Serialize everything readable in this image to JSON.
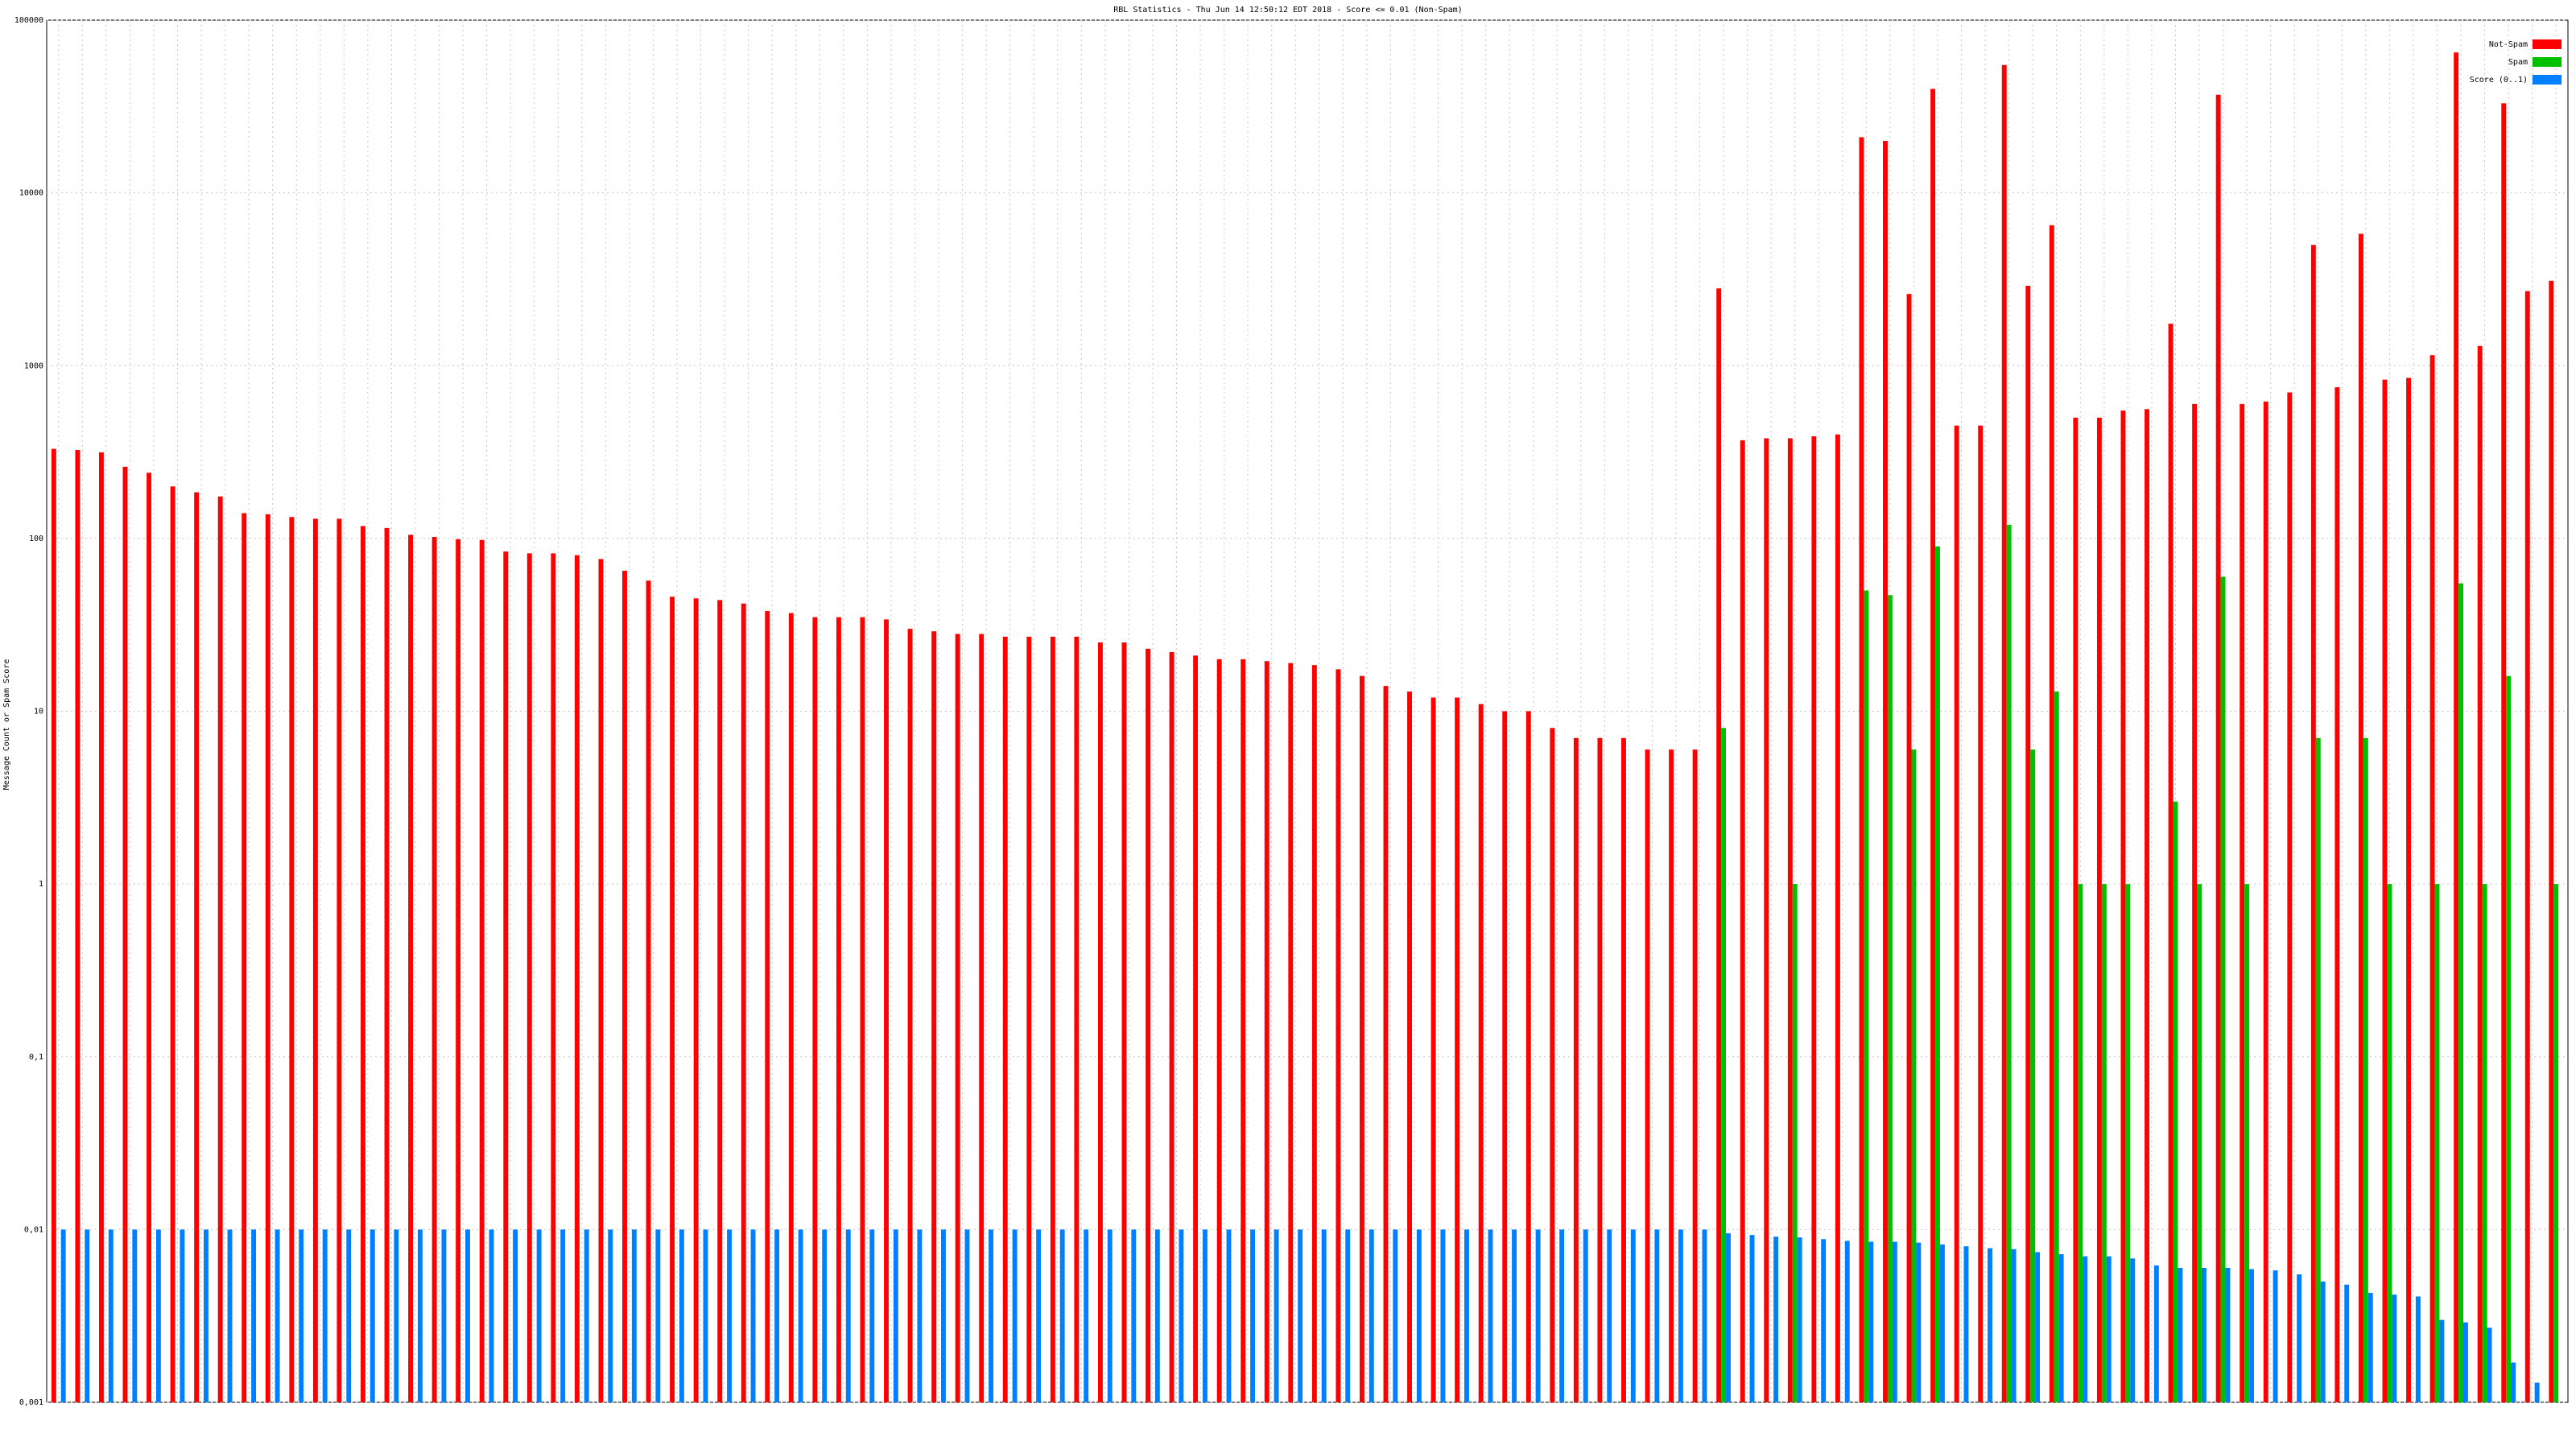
{
  "chart_data": {
    "type": "bar",
    "title": "RBL Statistics - Thu Jun 14 12:50:12 EDT 2018 - Score <= 0.01 (Non-Spam)",
    "y_label": "Message Count or Spam Score",
    "log_scale": true,
    "grid": true,
    "legend": "top-right",
    "categories": [
      null,
      null,
      null,
      null,
      null,
      null,
      null,
      null,
      null,
      null,
      null,
      null,
      null,
      null,
      null,
      null,
      null,
      null,
      null,
      null,
      null,
      null,
      null,
      null,
      null,
      null,
      null,
      null,
      null,
      null,
      null,
      null,
      null,
      null,
      null,
      null,
      null,
      null,
      null,
      null,
      null,
      null,
      null,
      null,
      null,
      null,
      null,
      null,
      null,
      null,
      null,
      null,
      null,
      null,
      null,
      null,
      null,
      null,
      null,
      null,
      null,
      null,
      null,
      null,
      null,
      null,
      null,
      null,
      null,
      null,
      null,
      null,
      null,
      null,
      null,
      null,
      null,
      null,
      null,
      null,
      null,
      null,
      null,
      null,
      null,
      null,
      null,
      null,
      null,
      null,
      null,
      null,
      null,
      null,
      null,
      null,
      null,
      null,
      null,
      null,
      null,
      null,
      null,
      null,
      null,
      null
    ],
    "series": [
      {
        "name": "Not-Spam",
        "color": "#ff0000",
        "values": [
          330,
          325,
          315,
          260,
          240,
          200,
          185,
          175,
          140,
          138,
          133,
          130,
          130,
          118,
          115,
          105,
          102,
          99,
          98,
          84,
          82,
          82,
          80,
          76,
          65,
          57,
          46,
          45,
          44,
          42,
          38,
          37,
          35,
          35,
          35,
          34,
          30,
          29,
          28,
          28,
          27,
          27,
          27,
          27,
          25,
          25,
          23,
          22,
          21,
          20,
          20,
          19.5,
          19,
          18.5,
          17.5,
          16,
          14,
          13,
          12,
          12,
          11,
          10,
          10,
          8,
          7,
          7,
          7,
          6,
          6,
          6,
          2800,
          370,
          380,
          380,
          390,
          400,
          21000,
          20000,
          2600,
          40000,
          450,
          450,
          55000,
          2900,
          6500,
          500,
          500,
          550,
          560,
          1750,
          600,
          37000,
          600,
          620,
          700,
          5000,
          750,
          5800,
          830,
          850,
          1150,
          65000,
          1300,
          33000,
          2700,
          3100
        ]
      },
      {
        "name": "Spam",
        "color": "#00c000",
        "values": [
          null,
          null,
          null,
          null,
          null,
          null,
          null,
          null,
          null,
          null,
          null,
          null,
          null,
          null,
          null,
          null,
          null,
          null,
          null,
          null,
          null,
          null,
          null,
          null,
          null,
          null,
          null,
          null,
          null,
          null,
          null,
          null,
          null,
          null,
          null,
          null,
          null,
          null,
          null,
          null,
          null,
          null,
          null,
          null,
          null,
          null,
          null,
          null,
          null,
          null,
          null,
          null,
          null,
          null,
          null,
          null,
          null,
          null,
          null,
          null,
          null,
          null,
          null,
          null,
          null,
          null,
          null,
          null,
          null,
          null,
          8,
          null,
          null,
          1,
          null,
          null,
          50,
          47,
          6,
          90,
          null,
          null,
          120,
          6,
          13,
          1,
          1,
          1,
          null,
          3,
          1,
          60,
          1,
          null,
          null,
          7,
          null,
          7,
          1,
          null,
          1,
          55,
          1,
          16,
          null,
          1
        ]
      },
      {
        "name": "Score (0..1)",
        "color": "#0080ff",
        "values": [
          0.01,
          0.01,
          0.01,
          0.01,
          0.01,
          0.01,
          0.01,
          0.01,
          0.01,
          0.01,
          0.01,
          0.01,
          0.01,
          0.01,
          0.01,
          0.01,
          0.01,
          0.01,
          0.01,
          0.01,
          0.01,
          0.01,
          0.01,
          0.01,
          0.01,
          0.01,
          0.01,
          0.01,
          0.01,
          0.01,
          0.01,
          0.01,
          0.01,
          0.01,
          0.01,
          0.01,
          0.01,
          0.01,
          0.01,
          0.01,
          0.01,
          0.01,
          0.01,
          0.01,
          0.01,
          0.01,
          0.01,
          0.01,
          0.01,
          0.01,
          0.01,
          0.01,
          0.01,
          0.01,
          0.01,
          0.01,
          0.01,
          0.01,
          0.01,
          0.01,
          0.01,
          0.01,
          0.01,
          0.01,
          0.01,
          0.01,
          0.01,
          0.01,
          0.01,
          0.01,
          0.0095,
          0.0093,
          0.0091,
          0.009,
          0.0088,
          0.0086,
          0.0085,
          0.0085,
          0.0084,
          0.0082,
          0.008,
          0.0078,
          0.0077,
          0.0074,
          0.0072,
          0.007,
          0.007,
          0.0068,
          0.0062,
          0.006,
          0.006,
          0.006,
          0.0059,
          0.0058,
          0.0055,
          0.005,
          0.0048,
          0.0043,
          0.0042,
          0.0041,
          0.003,
          0.0029,
          0.0027,
          0.0017,
          0.0013,
          null
        ]
      }
    ],
    "ylim": [
      0.001,
      100000
    ],
    "yticks": [
      {
        "value": 0.001,
        "label": "0,001"
      },
      {
        "value": 0.01,
        "label": "0,01"
      },
      {
        "value": 0.1,
        "label": "0,1"
      },
      1,
      10,
      100,
      1000,
      10000,
      100000
    ]
  }
}
